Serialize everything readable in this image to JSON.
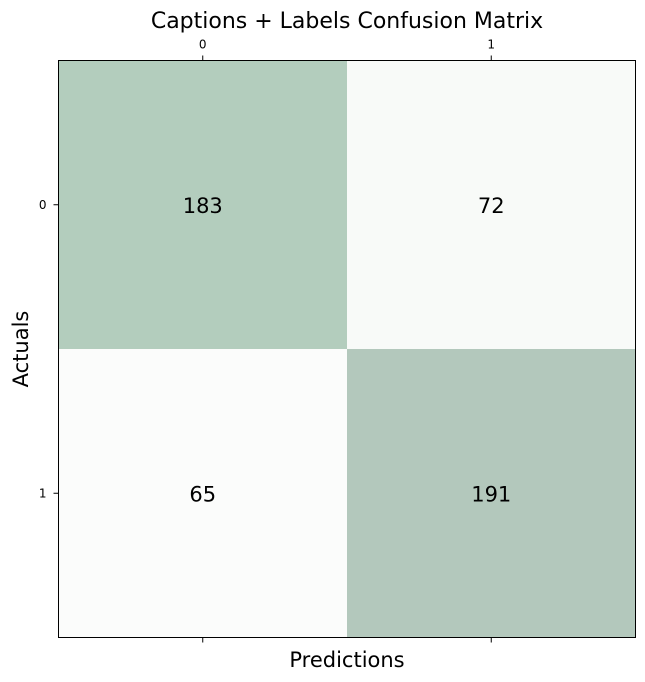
{
  "chart_data": {
    "type": "heatmap",
    "title": "Captions + Labels Confusion Matrix",
    "xlabel": "Predictions",
    "ylabel": "Actuals",
    "x_categories": [
      "0",
      "1"
    ],
    "y_categories": [
      "0",
      "1"
    ],
    "values": [
      [
        183,
        72
      ],
      [
        65,
        191
      ]
    ],
    "x_ticks_position": "top",
    "colors": {
      "cell_0_0": "#b3cdbd",
      "cell_0_1": "#f8faf8",
      "cell_1_0": "#fbfcfb",
      "cell_1_1": "#b3c8bc"
    }
  }
}
